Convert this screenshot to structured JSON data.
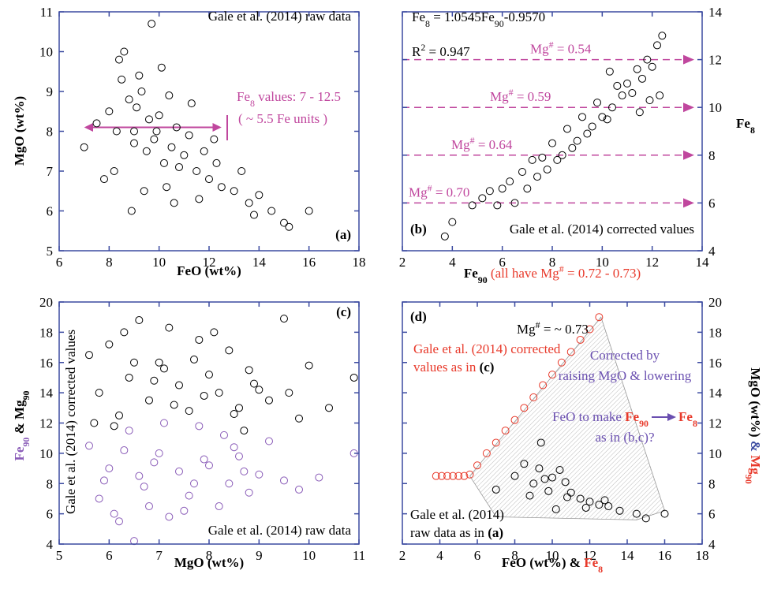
{
  "chart_data": [
    {
      "type": "scatter",
      "xlabel": [
        {
          "t": "FeO (wt%)",
          "bold": true
        }
      ],
      "ylabel": [
        {
          "t": "MgO (wt%)",
          "bold": true
        }
      ],
      "xlim": [
        6,
        18
      ],
      "xticks": [
        6,
        8,
        10,
        12,
        14,
        16,
        18
      ],
      "ylim": [
        5,
        11
      ],
      "yticks": [
        5,
        6,
        7,
        8,
        9,
        10,
        11
      ],
      "y_axis_side": "left",
      "annotations": [
        [
          {
            "t": "Gale et al. (2014) raw data"
          }
        ],
        [
          {
            "t": "(a)",
            "bold": true
          }
        ],
        [
          {
            "t": "Fe",
            "color": "#c0479e"
          },
          {
            "sub": "8",
            "color": "#c0479e"
          },
          {
            "t": " values: 7 - 12.5",
            "color": "#c0479e"
          }
        ],
        [
          {
            "t": "( ~ 5.5 Fe units )",
            "color": "#c0479e"
          }
        ]
      ],
      "series": [
        {
          "color": "#000000",
          "x": [
            7.0,
            7.5,
            8.0,
            8.2,
            8.5,
            8.8,
            9.0,
            9.1,
            9.3,
            9.5,
            9.6,
            9.8,
            10.0,
            10.2,
            10.4,
            10.5,
            10.7,
            11.0,
            11.2,
            11.5,
            11.8,
            12.0,
            12.3,
            12.5,
            13.0,
            13.3,
            13.6,
            14.0,
            14.5,
            15.0,
            15.2,
            16.0,
            8.4,
            8.6,
            9.2,
            9.4,
            9.7,
            10.1,
            10.6,
            11.3,
            7.8,
            8.9,
            9.9,
            10.8,
            12.2,
            13.8,
            8.3,
            9.0,
            10.3,
            11.6
          ],
          "values": [
            7.6,
            8.2,
            8.5,
            7.0,
            9.3,
            8.8,
            8.0,
            8.6,
            9.0,
            7.5,
            8.3,
            7.8,
            8.4,
            7.2,
            8.9,
            7.6,
            8.1,
            7.4,
            7.9,
            7.0,
            7.5,
            6.8,
            7.2,
            6.6,
            6.5,
            7.0,
            6.2,
            6.4,
            6.0,
            5.7,
            5.6,
            6.0,
            9.8,
            10.0,
            9.4,
            6.5,
            10.7,
            9.6,
            6.2,
            8.7,
            6.8,
            6.0,
            8.0,
            7.1,
            7.8,
            5.9,
            8.0,
            7.7,
            6.6,
            6.3
          ]
        }
      ]
    },
    {
      "type": "scatter",
      "xlabel": [
        {
          "t": "Fe",
          "bold": true
        },
        {
          "sub": "90",
          "bold": true
        },
        {
          "t": " (all have Mg",
          "color": "#e8392a"
        },
        {
          "sup": "#",
          "color": "#e8392a"
        },
        {
          "t": " = 0.72 - 0.73)",
          "color": "#e8392a"
        }
      ],
      "ylabel": [
        {
          "t": "Fe",
          "bold": true
        },
        {
          "sub": "8",
          "bold": true
        }
      ],
      "xlim": [
        2,
        14
      ],
      "xticks": [
        2,
        4,
        6,
        8,
        10,
        12,
        14
      ],
      "ylim": [
        4,
        14
      ],
      "yticks": [
        4,
        6,
        8,
        10,
        12,
        14
      ],
      "y_axis_side": "right",
      "annotations": [
        [
          {
            "t": "Fe"
          },
          {
            "sub": "8"
          },
          {
            "t": " = 1.0545Fe"
          },
          {
            "sub": "90"
          },
          {
            "t": "-0.9570"
          }
        ],
        [
          {
            "t": "R"
          },
          {
            "sup": "2"
          },
          {
            "t": " = 0.947"
          }
        ],
        [
          {
            "t": "Gale et al. (2014)  corrected values"
          }
        ],
        [
          {
            "t": "(b)",
            "bold": true
          }
        ]
      ],
      "reference_lines": [
        {
          "y": 12,
          "color": "#c0479e",
          "label": [
            {
              "t": "Mg"
            },
            {
              "sup": "#"
            },
            {
              "t": " = 0.54"
            }
          ]
        },
        {
          "y": 10,
          "color": "#c0479e",
          "label": [
            {
              "t": "Mg"
            },
            {
              "sup": "#"
            },
            {
              "t": " = 0.59"
            }
          ]
        },
        {
          "y": 8,
          "color": "#c0479e",
          "label": [
            {
              "t": "Mg"
            },
            {
              "sup": "#"
            },
            {
              "t": " = 0.64"
            }
          ]
        },
        {
          "y": 6,
          "color": "#c0479e",
          "label": [
            {
              "t": "Mg"
            },
            {
              "sup": "#"
            },
            {
              "t": " = 0.70"
            }
          ]
        }
      ],
      "series": [
        {
          "color": "#000000",
          "x": [
            3.7,
            4.0,
            4.8,
            5.2,
            5.5,
            5.8,
            6.0,
            6.3,
            6.5,
            6.8,
            7.0,
            7.2,
            7.4,
            7.6,
            7.8,
            8.0,
            8.2,
            8.4,
            8.6,
            8.8,
            9.0,
            9.2,
            9.4,
            9.6,
            9.8,
            10.0,
            10.2,
            10.4,
            10.6,
            10.8,
            11.0,
            11.2,
            11.4,
            11.6,
            11.8,
            12.0,
            12.2,
            12.4,
            12.3,
            11.9,
            11.5,
            10.3
          ],
          "values": [
            4.6,
            5.2,
            5.9,
            6.2,
            6.5,
            5.9,
            6.6,
            6.9,
            6.0,
            7.3,
            6.6,
            7.8,
            7.1,
            7.9,
            7.4,
            8.5,
            7.8,
            8.0,
            9.1,
            8.3,
            8.6,
            9.6,
            8.9,
            9.2,
            10.2,
            9.6,
            9.5,
            10.0,
            10.9,
            10.5,
            11.0,
            10.6,
            11.6,
            11.2,
            12.0,
            11.7,
            12.6,
            13.0,
            10.5,
            10.3,
            9.8,
            11.5
          ]
        }
      ]
    },
    {
      "type": "scatter",
      "xlabel": [
        {
          "t": "MgO (wt%)",
          "bold": true
        }
      ],
      "ylabel": [
        {
          "t": "Fe",
          "bold": true,
          "color": "#8a5cb8"
        },
        {
          "sub": "90",
          "bold": true,
          "color": "#8a5cb8"
        },
        {
          "t": " & ",
          "bold": true
        },
        {
          "t": "Mg",
          "bold": true
        },
        {
          "sub": "90",
          "bold": true
        }
      ],
      "xlim": [
        5,
        11
      ],
      "xticks": [
        5,
        6,
        7,
        8,
        9,
        10,
        11
      ],
      "ylim": [
        4,
        20
      ],
      "yticks": [
        4,
        6,
        8,
        10,
        12,
        14,
        16,
        18,
        20
      ],
      "y_axis_side": "left",
      "annotations": [
        [
          {
            "t": "(c)",
            "bold": true
          }
        ],
        [
          {
            "t": "Gale et al. (2014) corrected values"
          }
        ],
        [
          {
            "t": "Gale et al. (2014) raw data"
          }
        ]
      ],
      "series": [
        {
          "color": "#000000",
          "x": [
            5.6,
            5.8,
            6.0,
            6.2,
            6.4,
            6.6,
            6.8,
            7.0,
            7.2,
            7.4,
            7.6,
            7.8,
            8.0,
            8.2,
            8.4,
            8.6,
            8.8,
            9.0,
            9.2,
            9.5,
            9.8,
            10.0,
            10.4,
            10.9,
            6.1,
            6.5,
            6.9,
            7.3,
            7.7,
            8.1,
            8.5,
            8.9,
            5.7,
            6.3,
            7.1,
            7.9,
            8.7,
            9.6
          ],
          "values": [
            16.5,
            14.0,
            17.2,
            12.5,
            15.0,
            18.8,
            13.5,
            16.0,
            18.3,
            14.5,
            12.8,
            17.5,
            15.2,
            14.0,
            16.8,
            13.0,
            15.5,
            14.2,
            13.5,
            18.9,
            12.3,
            15.8,
            13.0,
            15.0,
            11.8,
            16.0,
            14.8,
            13.2,
            16.2,
            18.0,
            12.6,
            14.6,
            12.0,
            18.0,
            15.6,
            13.8,
            11.5,
            14.0
          ]
        },
        {
          "color": "#8a5cb8",
          "x": [
            5.6,
            5.8,
            6.0,
            6.2,
            6.4,
            6.5,
            6.6,
            6.8,
            7.0,
            7.2,
            7.4,
            7.6,
            7.8,
            8.0,
            8.2,
            8.4,
            8.6,
            8.8,
            9.0,
            9.2,
            9.5,
            9.8,
            10.2,
            10.9,
            5.9,
            6.3,
            6.7,
            7.1,
            7.5,
            7.9,
            8.3,
            8.7,
            6.1,
            6.9,
            7.7,
            8.5
          ],
          "values": [
            10.5,
            7.0,
            9.0,
            5.5,
            11.5,
            4.2,
            8.5,
            6.5,
            10.0,
            5.8,
            8.8,
            7.2,
            11.8,
            9.2,
            6.5,
            8.0,
            9.8,
            7.4,
            8.6,
            10.8,
            8.2,
            7.6,
            8.4,
            10.0,
            8.2,
            10.2,
            7.8,
            12.0,
            6.2,
            9.6,
            11.2,
            8.8,
            6.0,
            9.4,
            8.0,
            10.4
          ]
        }
      ]
    },
    {
      "type": "scatter",
      "xlabel": [
        {
          "t": "FeO (wt%) & ",
          "bold": true
        },
        {
          "t": "Fe",
          "bold": true,
          "color": "#e8392a"
        },
        {
          "sub": "8",
          "bold": true,
          "color": "#e8392a"
        }
      ],
      "ylabel": [
        {
          "t": "MgO (wt%)",
          "bold": true
        },
        {
          "t": " & ",
          "bold": true,
          "color": "#3b4aa0"
        },
        {
          "t": "Mg",
          "bold": true,
          "color": "#e8392a"
        },
        {
          "sub": "90",
          "bold": true,
          "color": "#e8392a"
        }
      ],
      "xlim": [
        2,
        18
      ],
      "xticks": [
        2,
        4,
        6,
        8,
        10,
        12,
        14,
        16,
        18
      ],
      "ylim": [
        4,
        20
      ],
      "yticks": [
        4,
        6,
        8,
        10,
        12,
        14,
        16,
        18,
        20
      ],
      "y_axis_side": "right",
      "annotations": [
        [
          {
            "t": "(d)",
            "bold": true
          }
        ],
        [
          {
            "t": "Mg"
          },
          {
            "sup": "#"
          },
          {
            "t": " = ~ 0.73"
          }
        ],
        [
          {
            "t": "Gale et al. (2014) corrected",
            "color": "#e8392a"
          }
        ],
        [
          {
            "t": "values as in ",
            "color": "#e8392a"
          },
          {
            "t": "(c)",
            "bold": true
          }
        ],
        [
          {
            "t": "Corrected by",
            "color": "#6a4fb0"
          }
        ],
        [
          {
            "t": "raising MgO & lowering",
            "color": "#6a4fb0"
          }
        ],
        [
          {
            "t": "FeO to make ",
            "color": "#6a4fb0"
          },
          {
            "t": "Fe",
            "bold": true,
            "color": "#e8392a"
          },
          {
            "sub": "90",
            "bold": true,
            "color": "#e8392a"
          }
        ],
        [
          {
            "t": "Fe",
            "bold": true,
            "color": "#e8392a"
          },
          {
            "sub": "8",
            "bold": true,
            "color": "#e8392a"
          }
        ],
        [
          {
            "t": "as in (b,c)?",
            "color": "#6a4fb0"
          }
        ],
        [
          {
            "t": "Gale et al. (2014)"
          }
        ],
        [
          {
            "t": "raw data as in "
          },
          {
            "t": "(a)",
            "bold": true
          }
        ]
      ],
      "series": [
        {
          "color": "#e8392a",
          "x": [
            3.8,
            4.1,
            4.4,
            4.7,
            5.0,
            5.3,
            5.6,
            6.0,
            6.5,
            7.0,
            7.5,
            8.0,
            8.5,
            9.0,
            9.5,
            10.0,
            10.5,
            11.0,
            11.5,
            12.0,
            12.5
          ],
          "values": [
            8.5,
            8.5,
            8.5,
            8.5,
            8.5,
            8.5,
            8.6,
            9.2,
            10.0,
            10.7,
            11.5,
            12.2,
            13.0,
            13.7,
            14.5,
            15.2,
            16.0,
            16.7,
            17.5,
            18.2,
            19.0
          ]
        },
        {
          "color": "#000000",
          "x": [
            7.0,
            8.0,
            8.5,
            9.0,
            9.3,
            9.6,
            10.0,
            10.4,
            10.7,
            11.0,
            11.5,
            12.0,
            12.5,
            13.0,
            13.6,
            14.5,
            15.0,
            16.0,
            8.8,
            9.8,
            10.8,
            11.8,
            12.8,
            9.4,
            10.2
          ],
          "values": [
            7.6,
            8.5,
            9.3,
            8.0,
            9.0,
            8.3,
            8.4,
            8.9,
            8.1,
            7.4,
            7.0,
            6.8,
            6.6,
            6.5,
            6.2,
            6.0,
            5.7,
            6.0,
            7.2,
            7.5,
            7.1,
            6.4,
            6.9,
            10.7,
            6.3
          ]
        }
      ]
    }
  ]
}
